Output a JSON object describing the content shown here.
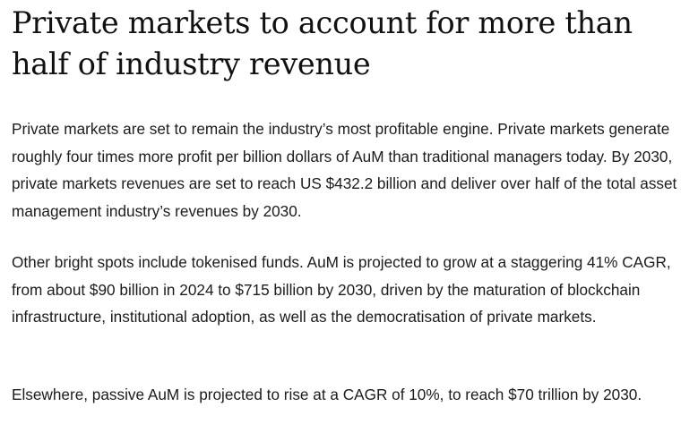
{
  "article": {
    "headline": "Private markets to account for more than half of industry revenue",
    "paragraphs": [
      "Private markets are set to remain the industry’s most profitable engine. Private markets generate roughly four times more profit per billion dollars of AuM than traditional managers today. By 2030, private markets revenues are set to reach US $432.2 billion and deliver over half of the total asset management industry’s revenues by 2030.",
      "Other bright spots include tokenised funds. AuM is projected to grow at a staggering 41% CAGR, from about $90 billion in 2024 to $715 billion by 2030, driven by the maturation of blockchain infrastructure, institutional adoption, as well as the democratisation of private markets.",
      "Elsewhere, passive AuM is projected to rise at a CAGR of 10%, to reach $70 trillion by 2030."
    ]
  }
}
